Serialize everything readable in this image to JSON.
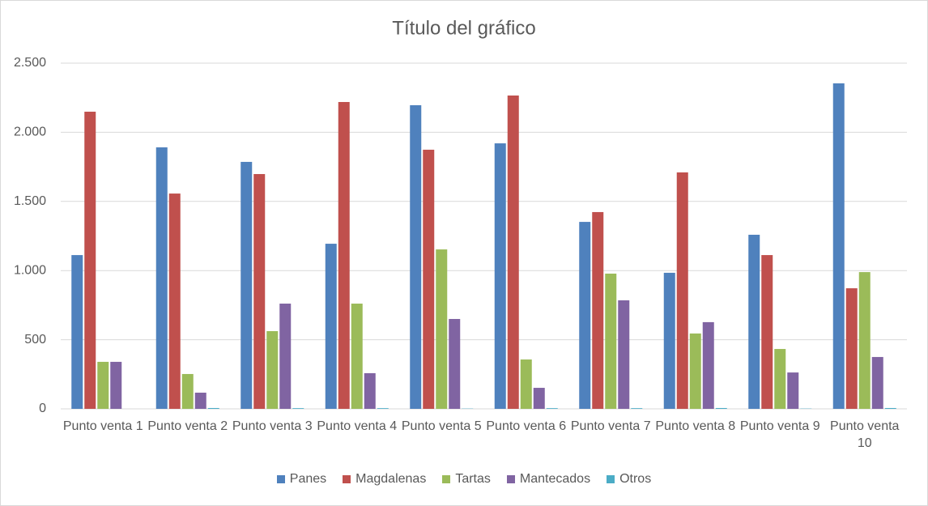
{
  "chart_data": {
    "type": "bar",
    "title": "Título del gráfico",
    "categories": [
      "Punto venta 1",
      "Punto venta 2",
      "Punto venta 3",
      "Punto venta 4",
      "Punto venta 5",
      "Punto venta 6",
      "Punto venta 7",
      "Punto venta 8",
      "Punto venta 9",
      "Punto venta 10"
    ],
    "series": [
      {
        "name": "Panes",
        "color": "#4f81bd",
        "values": [
          1112,
          1891,
          1786,
          1194,
          2196,
          1920,
          1352,
          984,
          1259,
          2354
        ]
      },
      {
        "name": "Magdalenas",
        "color": "#c0504d",
        "values": [
          2149,
          1557,
          1698,
          2219,
          1874,
          2266,
          1423,
          1710,
          1112,
          872
        ]
      },
      {
        "name": "Tartas",
        "color": "#9bbb59",
        "values": [
          340,
          252,
          562,
          761,
          1153,
          357,
          978,
          545,
          433,
          989
        ]
      },
      {
        "name": "Mantecados",
        "color": "#8064a2",
        "values": [
          340,
          117,
          761,
          258,
          650,
          152,
          785,
          627,
          263,
          375
        ]
      },
      {
        "name": "Otros",
        "color": "#4bacc6",
        "values": [
          0,
          6,
          5,
          5,
          2,
          5,
          5,
          6,
          2,
          6
        ]
      }
    ],
    "ylim": [
      0,
      2500
    ],
    "yticks": [
      0,
      500,
      {
        "value": 1000,
        "label": "1.000"
      },
      {
        "value": 1500,
        "label": "1.500"
      },
      {
        "value": 2000,
        "label": "2.000"
      },
      {
        "value": 2500,
        "label": "2.500"
      }
    ],
    "grid": true,
    "legend": "bottom"
  }
}
